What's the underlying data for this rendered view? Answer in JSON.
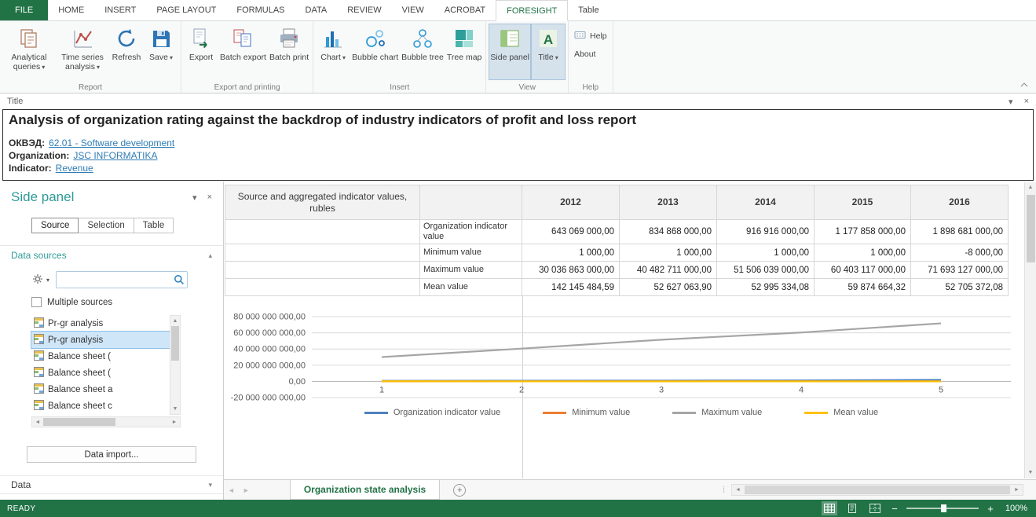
{
  "colors": {
    "accent_green": "#217346",
    "panel_teal": "#2e9a97",
    "link_blue": "#2f7cb5"
  },
  "ribbon_tabs": {
    "file": "FILE",
    "items": [
      "HOME",
      "INSERT",
      "PAGE LAYOUT",
      "FORMULAS",
      "DATA",
      "REVIEW",
      "VIEW",
      "ACROBAT",
      "FORESIGHT",
      "Table"
    ],
    "active": "FORESIGHT"
  },
  "ribbon": {
    "groups": [
      {
        "label": "Report",
        "buttons": [
          {
            "label": "Analytical queries"
          },
          {
            "label": "Time series analysis"
          },
          {
            "label": "Refresh"
          },
          {
            "label": "Save"
          }
        ]
      },
      {
        "label": "Export and printing",
        "buttons": [
          {
            "label": "Export"
          },
          {
            "label": "Batch export"
          },
          {
            "label": "Batch print"
          }
        ]
      },
      {
        "label": "Insert",
        "buttons": [
          {
            "label": "Chart"
          },
          {
            "label": "Bubble chart"
          },
          {
            "label": "Bubble tree"
          },
          {
            "label": "Tree map"
          }
        ]
      },
      {
        "label": "View",
        "buttons": [
          {
            "label": "Side panel"
          },
          {
            "label": "Title"
          }
        ]
      },
      {
        "label": "Help",
        "buttons": [
          {
            "label": "Help"
          },
          {
            "label": "About"
          }
        ]
      }
    ]
  },
  "title_panel": {
    "strip_label": "Title",
    "heading": "Analysis of organization rating against the backdrop of industry indicators of profit and loss report",
    "fields": [
      {
        "label": "ОКВЭД:",
        "value": "62.01 - Software development"
      },
      {
        "label": "Organization:",
        "value": "JSC INFORMATIKA"
      },
      {
        "label": "Indicator:",
        "value": "Revenue"
      }
    ]
  },
  "side_panel": {
    "title": "Side panel",
    "tabs": [
      "Source",
      "Selection",
      "Table"
    ],
    "active_tab": "Source",
    "sections": {
      "data_sources": "Data sources",
      "data": "Data"
    },
    "multiple_sources": "Multiple sources",
    "list_items": [
      "Pr-gr analysis",
      "Pr-gr analysis",
      "Balance sheet (",
      "Balance sheet (",
      "Balance sheet a",
      "Balance sheet c"
    ],
    "selected_item_index": 1,
    "import_button": "Data import..."
  },
  "table": {
    "corner_header": "Source and aggregated indicator values, rubles",
    "years": [
      "2012",
      "2013",
      "2014",
      "2015",
      "2016"
    ],
    "rows": [
      {
        "label": "Organization indicator value",
        "values": [
          "643 069 000,00",
          "834 868 000,00",
          "916 916 000,00",
          "1 177 858 000,00",
          "1 898 681 000,00"
        ]
      },
      {
        "label": "Minimum value",
        "values": [
          "1 000,00",
          "1 000,00",
          "1 000,00",
          "1 000,00",
          "-8 000,00"
        ]
      },
      {
        "label": "Maximum value",
        "values": [
          "30 036 863 000,00",
          "40 482 711 000,00",
          "51 506 039 000,00",
          "60 403 117 000,00",
          "71 693 127 000,00"
        ]
      },
      {
        "label": "Mean value",
        "values": [
          "142 145 484,59",
          "52 627 063,90",
          "52 995 334,08",
          "59 874 664,32",
          "52 705 372,08"
        ]
      }
    ]
  },
  "chart_data": {
    "type": "line",
    "x": [
      "1",
      "2",
      "3",
      "4",
      "5"
    ],
    "series": [
      {
        "name": "Organization indicator value",
        "color": "#4e81bd",
        "values": [
          643069000,
          834868000,
          916916000,
          1177858000,
          1898681000
        ]
      },
      {
        "name": "Minimum value",
        "color": "#ed7d31",
        "values": [
          1000,
          1000,
          1000,
          1000,
          -8000
        ]
      },
      {
        "name": "Maximum value",
        "color": "#a5a5a5",
        "values": [
          30036863000,
          40482711000,
          51506039000,
          60403117000,
          71693127000
        ]
      },
      {
        "name": "Mean value",
        "color": "#ffc000",
        "values": [
          142145484.59,
          52627063.9,
          52995334.08,
          59874664.32,
          52705372.08
        ]
      }
    ],
    "ylim": [
      -20000000000,
      80000000000
    ],
    "y_tick_values": [
      80000000000,
      60000000000,
      40000000000,
      20000000000,
      0,
      -20000000000
    ],
    "y_ticks": [
      "80 000 000 000,00",
      "60 000 000 000,00",
      "40 000 000 000,00",
      "20 000 000 000,00",
      "0,00",
      "-20 000 000 000,00"
    ],
    "grid": true,
    "legend_position": "bottom"
  },
  "sheet_bar": {
    "active_tab": "Organization state analysis"
  },
  "status_bar": {
    "status": "READY",
    "zoom": "100%"
  }
}
